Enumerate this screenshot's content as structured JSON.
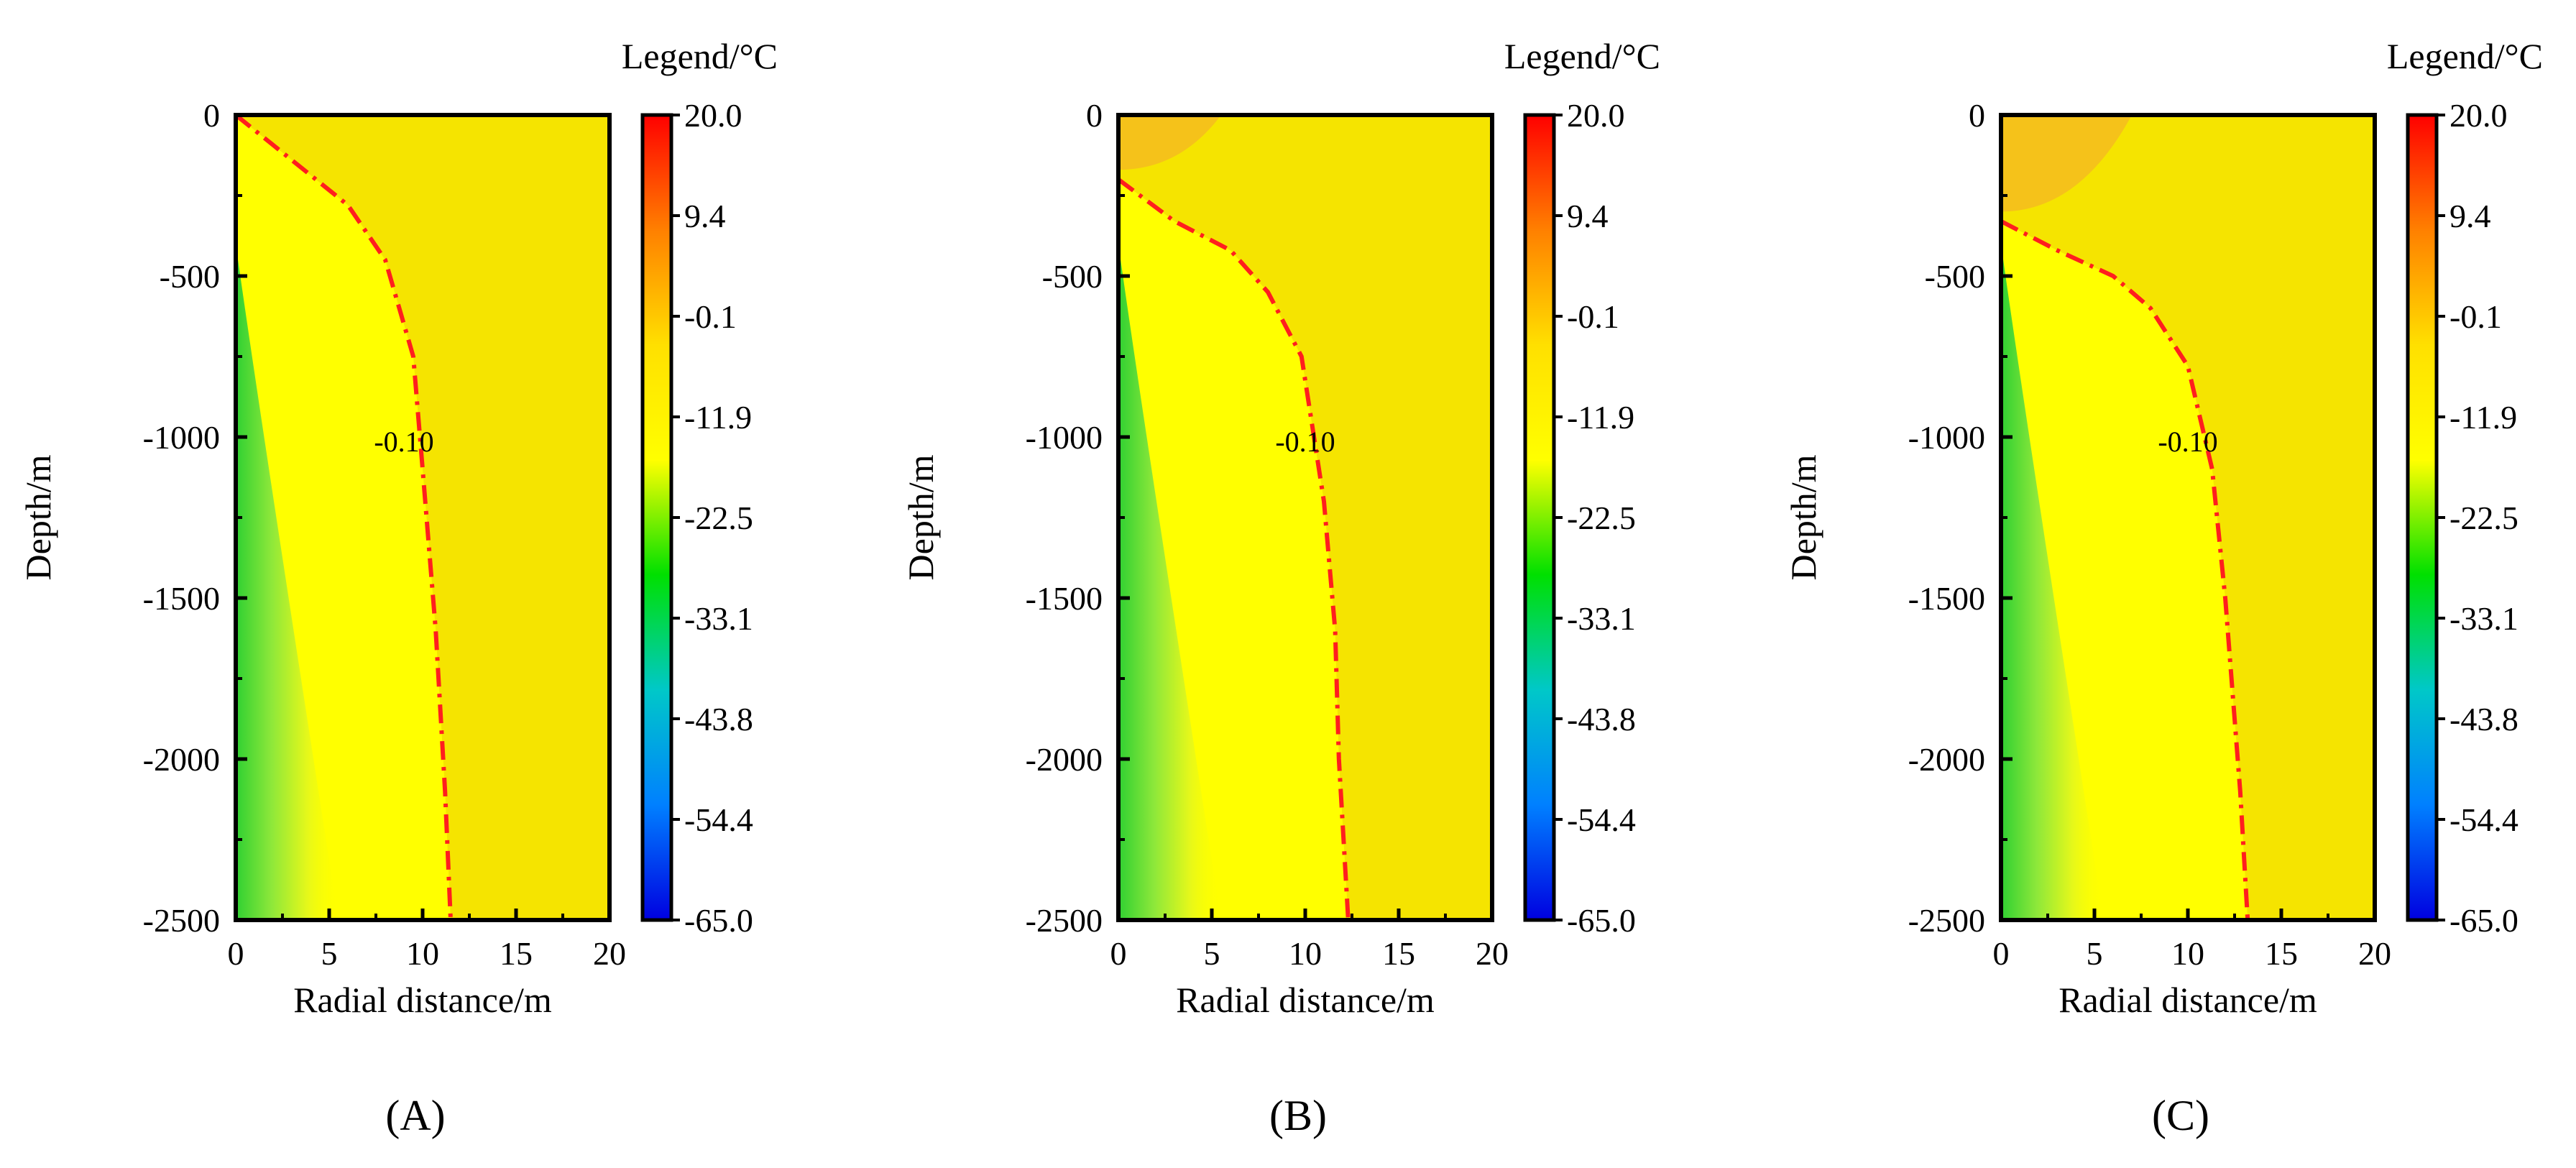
{
  "chart_data": [
    {
      "type": "heatmap",
      "panel_label": "(A)",
      "xlabel": "Radial distance/m",
      "ylabel": "Depth/m",
      "xlim": [
        0,
        20
      ],
      "ylim": [
        -2500,
        0
      ],
      "x_ticks": [
        "0",
        "5",
        "10",
        "15",
        "20"
      ],
      "y_ticks": [
        "0",
        "-500",
        "-1000",
        "-1500",
        "-2000",
        "-2500"
      ],
      "legend_title": "Legend/°C",
      "colorbar_ticks": [
        "20.0",
        "9.4",
        "-0.1",
        "-11.9",
        "-22.5",
        "-33.1",
        "-43.8",
        "-54.4",
        "-65.0"
      ],
      "contour_label": "-0.10",
      "contour": [
        {
          "x": 0,
          "y": 0
        },
        {
          "x": 6,
          "y": -280
        },
        {
          "x": 8,
          "y": -450
        },
        {
          "x": 9.5,
          "y": -750
        },
        {
          "x": 10,
          "y": -1100
        },
        {
          "x": 10.7,
          "y": -1600
        },
        {
          "x": 11.2,
          "y": -2100
        },
        {
          "x": 11.5,
          "y": -2500
        }
      ],
      "contour_label_pos": {
        "x": 9,
        "y": -1000
      },
      "warm_zone": null
    },
    {
      "type": "heatmap",
      "panel_label": "(B)",
      "xlabel": "Radial distance/m",
      "ylabel": "Depth/m",
      "xlim": [
        0,
        20
      ],
      "ylim": [
        -2500,
        0
      ],
      "x_ticks": [
        "0",
        "5",
        "10",
        "15",
        "20"
      ],
      "y_ticks": [
        "0",
        "-500",
        "-1000",
        "-1500",
        "-2000",
        "-2500"
      ],
      "legend_title": "Legend/°C",
      "colorbar_ticks": [
        "20.0",
        "9.4",
        "-0.1",
        "-11.9",
        "-22.5",
        "-33.1",
        "-43.8",
        "-54.4",
        "-65.0"
      ],
      "contour_label": "-0.10",
      "contour": [
        {
          "x": 0,
          "y": -200
        },
        {
          "x": 3,
          "y": -330
        },
        {
          "x": 6,
          "y": -420
        },
        {
          "x": 8,
          "y": -550
        },
        {
          "x": 9.8,
          "y": -750
        },
        {
          "x": 11,
          "y": -1200
        },
        {
          "x": 11.6,
          "y": -1600
        },
        {
          "x": 11.8,
          "y": -2000
        },
        {
          "x": 12.3,
          "y": -2500
        }
      ],
      "contour_label_pos": {
        "x": 10,
        "y": -1000
      },
      "warm_zone": {
        "x_extent": 5.5,
        "depth": -170
      }
    },
    {
      "type": "heatmap",
      "panel_label": "(C)",
      "xlabel": "Radial distance/m",
      "ylabel": "Depth/m",
      "xlim": [
        0,
        20
      ],
      "ylim": [
        -2500,
        0
      ],
      "x_ticks": [
        "0",
        "5",
        "10",
        "15",
        "20"
      ],
      "y_ticks": [
        "0",
        "-500",
        "-1000",
        "-1500",
        "-2000",
        "-2500"
      ],
      "legend_title": "Legend/°C",
      "colorbar_ticks": [
        "20.0",
        "9.4",
        "-0.1",
        "-11.9",
        "-22.5",
        "-33.1",
        "-43.8",
        "-54.4",
        "-65.0"
      ],
      "contour_label": "-0.10",
      "contour": [
        {
          "x": 0,
          "y": -330
        },
        {
          "x": 3,
          "y": -420
        },
        {
          "x": 6,
          "y": -500
        },
        {
          "x": 8,
          "y": -600
        },
        {
          "x": 10,
          "y": -780
        },
        {
          "x": 11.3,
          "y": -1100
        },
        {
          "x": 12,
          "y": -1500
        },
        {
          "x": 12.8,
          "y": -2100
        },
        {
          "x": 13.2,
          "y": -2500
        }
      ],
      "contour_label_pos": {
        "x": 10,
        "y": -1000
      },
      "warm_zone": {
        "x_extent": 7,
        "depth": -300
      }
    }
  ],
  "colors": {
    "background_field": "#F5E400",
    "near_field": "#FFFF00",
    "cold_core": "#2FD032",
    "warm_zone": "#F5C21A",
    "contour_line": "#FF1E1E",
    "colorbar_stops": [
      "#FF0000",
      "#FF8000",
      "#FFE000",
      "#FFFF00",
      "#00E000",
      "#00C8C8",
      "#0080FF",
      "#0000E0"
    ]
  }
}
